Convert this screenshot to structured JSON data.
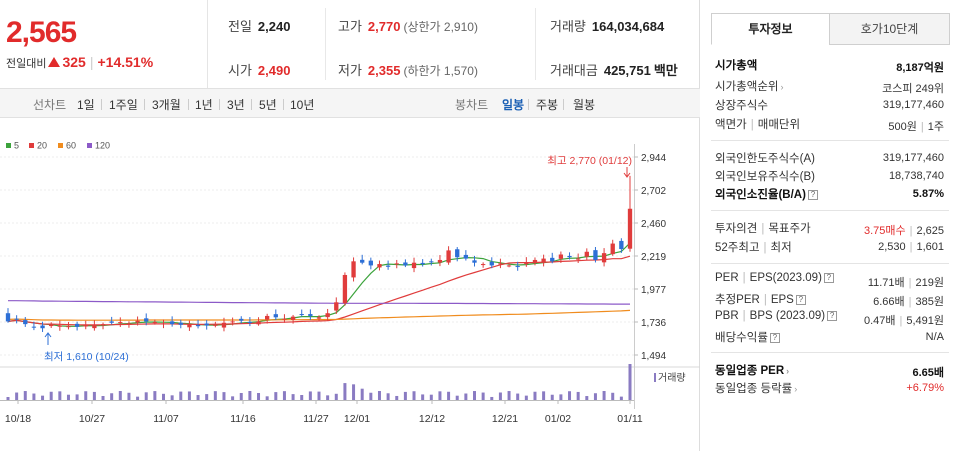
{
  "quote": {
    "price": "2,565",
    "change_label": "전일대비",
    "change": "325",
    "change_pct": "+14.51%",
    "prev_close_label": "전일",
    "prev_close": "2,240",
    "open_label": "시가",
    "open": "2,490",
    "high_label": "고가",
    "high": "2,770",
    "upper_limit": "(상한가 2,910)",
    "low_label": "저가",
    "low": "2,355",
    "lower_limit": "(하한가 1,570)",
    "volume_label": "거래량",
    "volume": "164,034,684",
    "value_label": "거래대금",
    "value": "425,751",
    "value_unit": "백만"
  },
  "toolbar": {
    "line_label": "선차트",
    "periods": [
      "1일",
      "1주일",
      "3개월",
      "1년",
      "3년",
      "5년",
      "10년"
    ],
    "candle_label": "봉차트",
    "candle_periods": [
      "일봉",
      "주봉",
      "월봉"
    ],
    "active_candle": "일봉"
  },
  "legend": [
    {
      "label": "5",
      "color": "#3ca33c"
    },
    {
      "label": "20",
      "color": "#e03c3c"
    },
    {
      "label": "60",
      "color": "#f08c1e"
    },
    {
      "label": "120",
      "color": "#8c5ac8"
    }
  ],
  "chart_data": {
    "type": "candlestick",
    "y_ticks": [
      "2,944",
      "2,702",
      "2,460",
      "2,219",
      "1,977",
      "1,736",
      "1,494"
    ],
    "ylim": [
      1494,
      2944
    ],
    "x_ticks": [
      "10/18",
      "10/27",
      "11/07",
      "11/16",
      "11/27",
      "12/01",
      "12/12",
      "12/21",
      "01/02",
      "01/11"
    ],
    "annotations": {
      "high": "최고 2,770 (01/12)",
      "low": "최저 1,610 (10/24)"
    },
    "volume_label": "거래량",
    "colors": {
      "up": "#e03c3c",
      "down": "#2d6fd6"
    }
  },
  "tabs": {
    "info": "투자정보",
    "orderbook": "호가10단계"
  },
  "invest": {
    "mktcap_label": "시가총액",
    "mktcap": "8,187억원",
    "rank_label": "시가총액순위",
    "rank": "코스피 249위",
    "shares_label": "상장주식수",
    "shares": "319,177,460",
    "par_label": "액면가",
    "unit_label": "매매단위",
    "par": "500원",
    "unit": "1주",
    "foreign_limit_label": "외국인한도주식수(A)",
    "foreign_limit": "319,177,460",
    "foreign_hold_label": "외국인보유주식수(B)",
    "foreign_hold": "18,738,740",
    "foreign_ratio_label": "외국인소진율(B/A)",
    "foreign_ratio": "5.87%",
    "opinion_label": "투자의견",
    "target_label": "목표주가",
    "opinion": "3.75매수",
    "target": "2,625",
    "w52_high_label": "52주최고",
    "w52_low_label": "최저",
    "w52_high": "2,530",
    "w52_low": "1,601",
    "per_label": "PER",
    "eps_label": "EPS(2023.09)",
    "per": "11.71배",
    "eps": "219원",
    "est_per_label": "추정PER",
    "est_eps_label": "EPS",
    "est_per": "6.66배",
    "est_eps": "385원",
    "pbr_label": "PBR",
    "bps_label": "BPS (2023.09)",
    "pbr": "0.47배",
    "bps": "5,491원",
    "div_label": "배당수익률",
    "div": "N/A",
    "sector_per_label": "동일업종 PER",
    "sector_per": "6.65배",
    "sector_chg_label": "동일업종 등락률",
    "sector_chg": "+6.79%"
  }
}
